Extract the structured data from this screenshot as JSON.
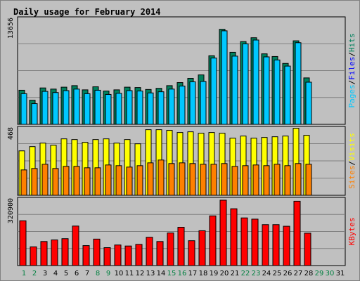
{
  "chart_data": {
    "type": "bar",
    "title": "Daily usage for February 2014",
    "categories": [
      "1",
      "2",
      "3",
      "4",
      "5",
      "6",
      "7",
      "8",
      "9",
      "10",
      "11",
      "12",
      "13",
      "14",
      "15",
      "16",
      "17",
      "18",
      "19",
      "20",
      "21",
      "22",
      "23",
      "24",
      "25",
      "26",
      "27",
      "28",
      "29",
      "30",
      "31"
    ],
    "weekend_days": [
      "1",
      "2",
      "8",
      "9",
      "15",
      "16",
      "22",
      "23",
      "29",
      "30"
    ],
    "panels": [
      {
        "name": "traffic",
        "ymax_label": "13656",
        "ylim": [
          0,
          13656
        ],
        "legend": [
          "Pages",
          "/",
          "Files",
          "/",
          "Hits"
        ],
        "series": [
          {
            "name": "Hits",
            "color": "#00805c",
            "values": [
              4450,
              3150,
              4750,
              4600,
              4850,
              5050,
              4500,
              4900,
              4350,
              4500,
              4850,
              4800,
              4550,
              4700,
              5050,
              5450,
              6000,
              6450,
              8950,
              12400,
              9400,
              10800,
              11300,
              9200,
              8850,
              7950,
              10900,
              6060,
              0,
              0,
              0
            ]
          },
          {
            "name": "Files",
            "color": "#00c8ff",
            "values": [
              4000,
              2700,
              4300,
              4150,
              4400,
              4600,
              4000,
              4450,
              3900,
              4050,
              4400,
              4350,
              4100,
              4250,
              4600,
              5000,
              5550,
              5600,
              8650,
              12200,
              8900,
              10500,
              11000,
              8800,
              8400,
              7600,
              10650,
              5500,
              0,
              0,
              0
            ]
          },
          {
            "name": "Pages",
            "color": "#00c8ff",
            "values": [
              0,
              0,
              0,
              0,
              0,
              0,
              0,
              0,
              0,
              0,
              0,
              0,
              0,
              0,
              0,
              0,
              0,
              0,
              0,
              0,
              0,
              0,
              0,
              0,
              0,
              0,
              0,
              0,
              0,
              0,
              0
            ]
          }
        ]
      },
      {
        "name": "visitors",
        "ymax_label": "468",
        "ylim": [
          0,
          468
        ],
        "legend": [
          "Sites",
          "/",
          "Visits"
        ],
        "series": [
          {
            "name": "Visits",
            "color": "#ffff00",
            "values": [
              315,
              345,
              370,
              355,
              400,
              395,
              375,
              395,
              400,
              370,
              395,
              365,
              465,
              465,
              460,
              445,
              450,
              440,
              445,
              440,
              405,
              420,
              405,
              410,
              415,
              420,
              475,
              425,
              0,
              0,
              0
            ]
          },
          {
            "name": "Sites",
            "color": "#ff8000",
            "values": [
              180,
              190,
              220,
              190,
              205,
              205,
              195,
              195,
              215,
              210,
              200,
              210,
              230,
              250,
              225,
              230,
              225,
              220,
              220,
              225,
              205,
              210,
              215,
              210,
              220,
              210,
              225,
              220,
              0,
              0,
              0
            ]
          }
        ]
      },
      {
        "name": "kbytes",
        "ymax_label": "320900",
        "ylim": [
          0,
          320900
        ],
        "legend": [
          "KBytes"
        ],
        "series": [
          {
            "name": "KBytes",
            "color": "#ff0000",
            "values": [
              220000,
              92000,
              118000,
              126000,
              132000,
              194000,
              98000,
              130000,
              88000,
              101000,
              96000,
              104000,
              139000,
              118000,
              160000,
              188000,
              122000,
              171000,
              244000,
              321000,
              279000,
              234000,
              228000,
              201000,
              201000,
              193000,
              316000,
              159000,
              0,
              0,
              0
            ]
          }
        ]
      }
    ]
  }
}
